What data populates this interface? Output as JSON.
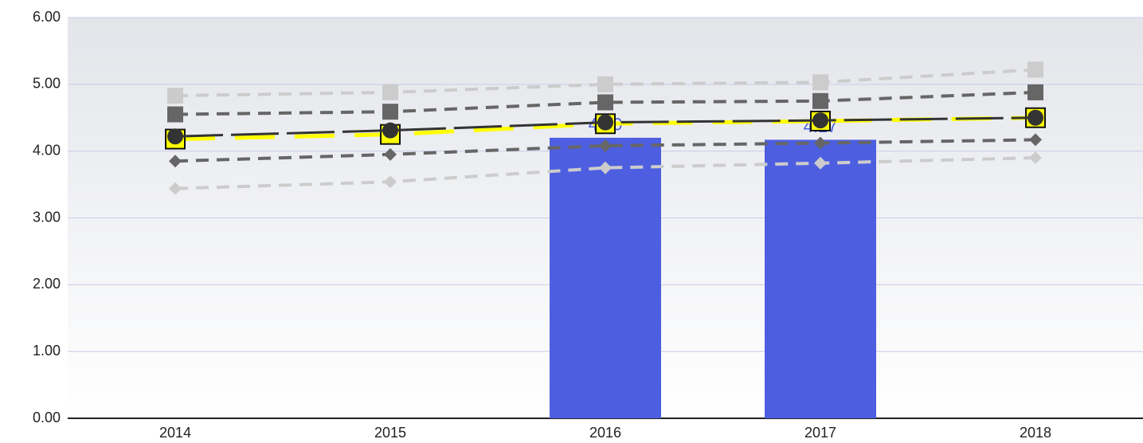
{
  "chart_data": {
    "type": "bar",
    "categories": [
      "2014",
      "2015",
      "2016",
      "2017",
      "2018"
    ],
    "ylim": [
      0,
      6
    ],
    "yticks": [
      {
        "value": 0,
        "label": "0.00"
      },
      {
        "value": 1,
        "label": "1.00"
      },
      {
        "value": 2,
        "label": "2.00"
      },
      {
        "value": 3,
        "label": "3.00"
      },
      {
        "value": 4,
        "label": "4.00"
      },
      {
        "value": 5,
        "label": "5.00"
      },
      {
        "value": 6,
        "label": "6.00"
      }
    ],
    "grid": true,
    "series": [
      {
        "type": "bar",
        "color": "#4d5fe0",
        "values": [
          null,
          null,
          4.2,
          4.17,
          null
        ],
        "value_labels": [
          null,
          null,
          "4.20",
          "4.17",
          null
        ]
      },
      {
        "type": "line",
        "color": "#cccccc",
        "marker": "square",
        "values": [
          4.83,
          4.88,
          5.0,
          5.03,
          5.22
        ]
      },
      {
        "type": "line",
        "color": "#666666",
        "marker": "square",
        "values": [
          4.55,
          4.59,
          4.73,
          4.75,
          4.88
        ]
      },
      {
        "type": "line",
        "color": "#ffff00",
        "marker": "framed-square",
        "values": [
          4.18,
          4.25,
          4.41,
          4.45,
          4.5
        ]
      },
      {
        "type": "line",
        "color": "#333333",
        "marker": "circle",
        "values": [
          4.22,
          4.31,
          4.43,
          4.46,
          4.5
        ]
      },
      {
        "type": "line",
        "color": "#666666",
        "marker": "diamond",
        "values": [
          3.85,
          3.95,
          4.08,
          4.12,
          4.17
        ]
      },
      {
        "type": "line",
        "color": "#cccccc",
        "marker": "diamond",
        "values": [
          3.44,
          3.54,
          3.75,
          3.82,
          3.9
        ]
      }
    ]
  }
}
